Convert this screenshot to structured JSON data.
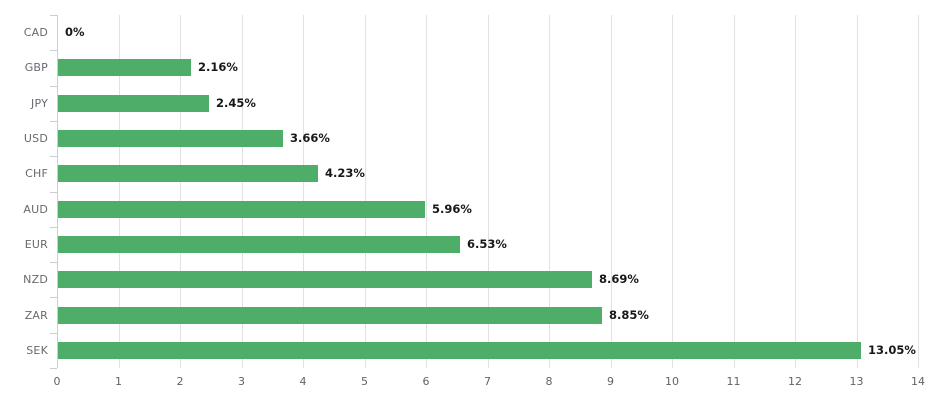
{
  "chart_data": {
    "type": "bar",
    "orientation": "horizontal",
    "title": "",
    "xlabel": "",
    "ylabel": "",
    "legend": "none",
    "grid": "vertical",
    "xlim": [
      0,
      14
    ],
    "x_ticks": [
      "0",
      "1",
      "2",
      "3",
      "4",
      "5",
      "6",
      "7",
      "8",
      "9",
      "10",
      "11",
      "12",
      "13",
      "14"
    ],
    "categories": [
      "CAD",
      "GBP",
      "JPY",
      "USD",
      "CHF",
      "AUD",
      "EUR",
      "NZD",
      "ZAR",
      "SEK"
    ],
    "values": [
      0,
      2.16,
      2.45,
      3.66,
      4.23,
      5.96,
      6.53,
      8.69,
      8.85,
      13.05
    ],
    "value_labels": [
      "0%",
      "2.16%",
      "2.45%",
      "3.66%",
      "4.23%",
      "5.96%",
      "6.53%",
      "8.69%",
      "8.85%",
      "13.05%"
    ],
    "colors": {
      "bar": "#4fad6a",
      "gridline": "#e2e2e2",
      "axis": "#c9cdd4",
      "category_label": "#66696e",
      "tick_label": "#5f6368",
      "value_label": "#17181a",
      "background": "#ffffff"
    }
  }
}
